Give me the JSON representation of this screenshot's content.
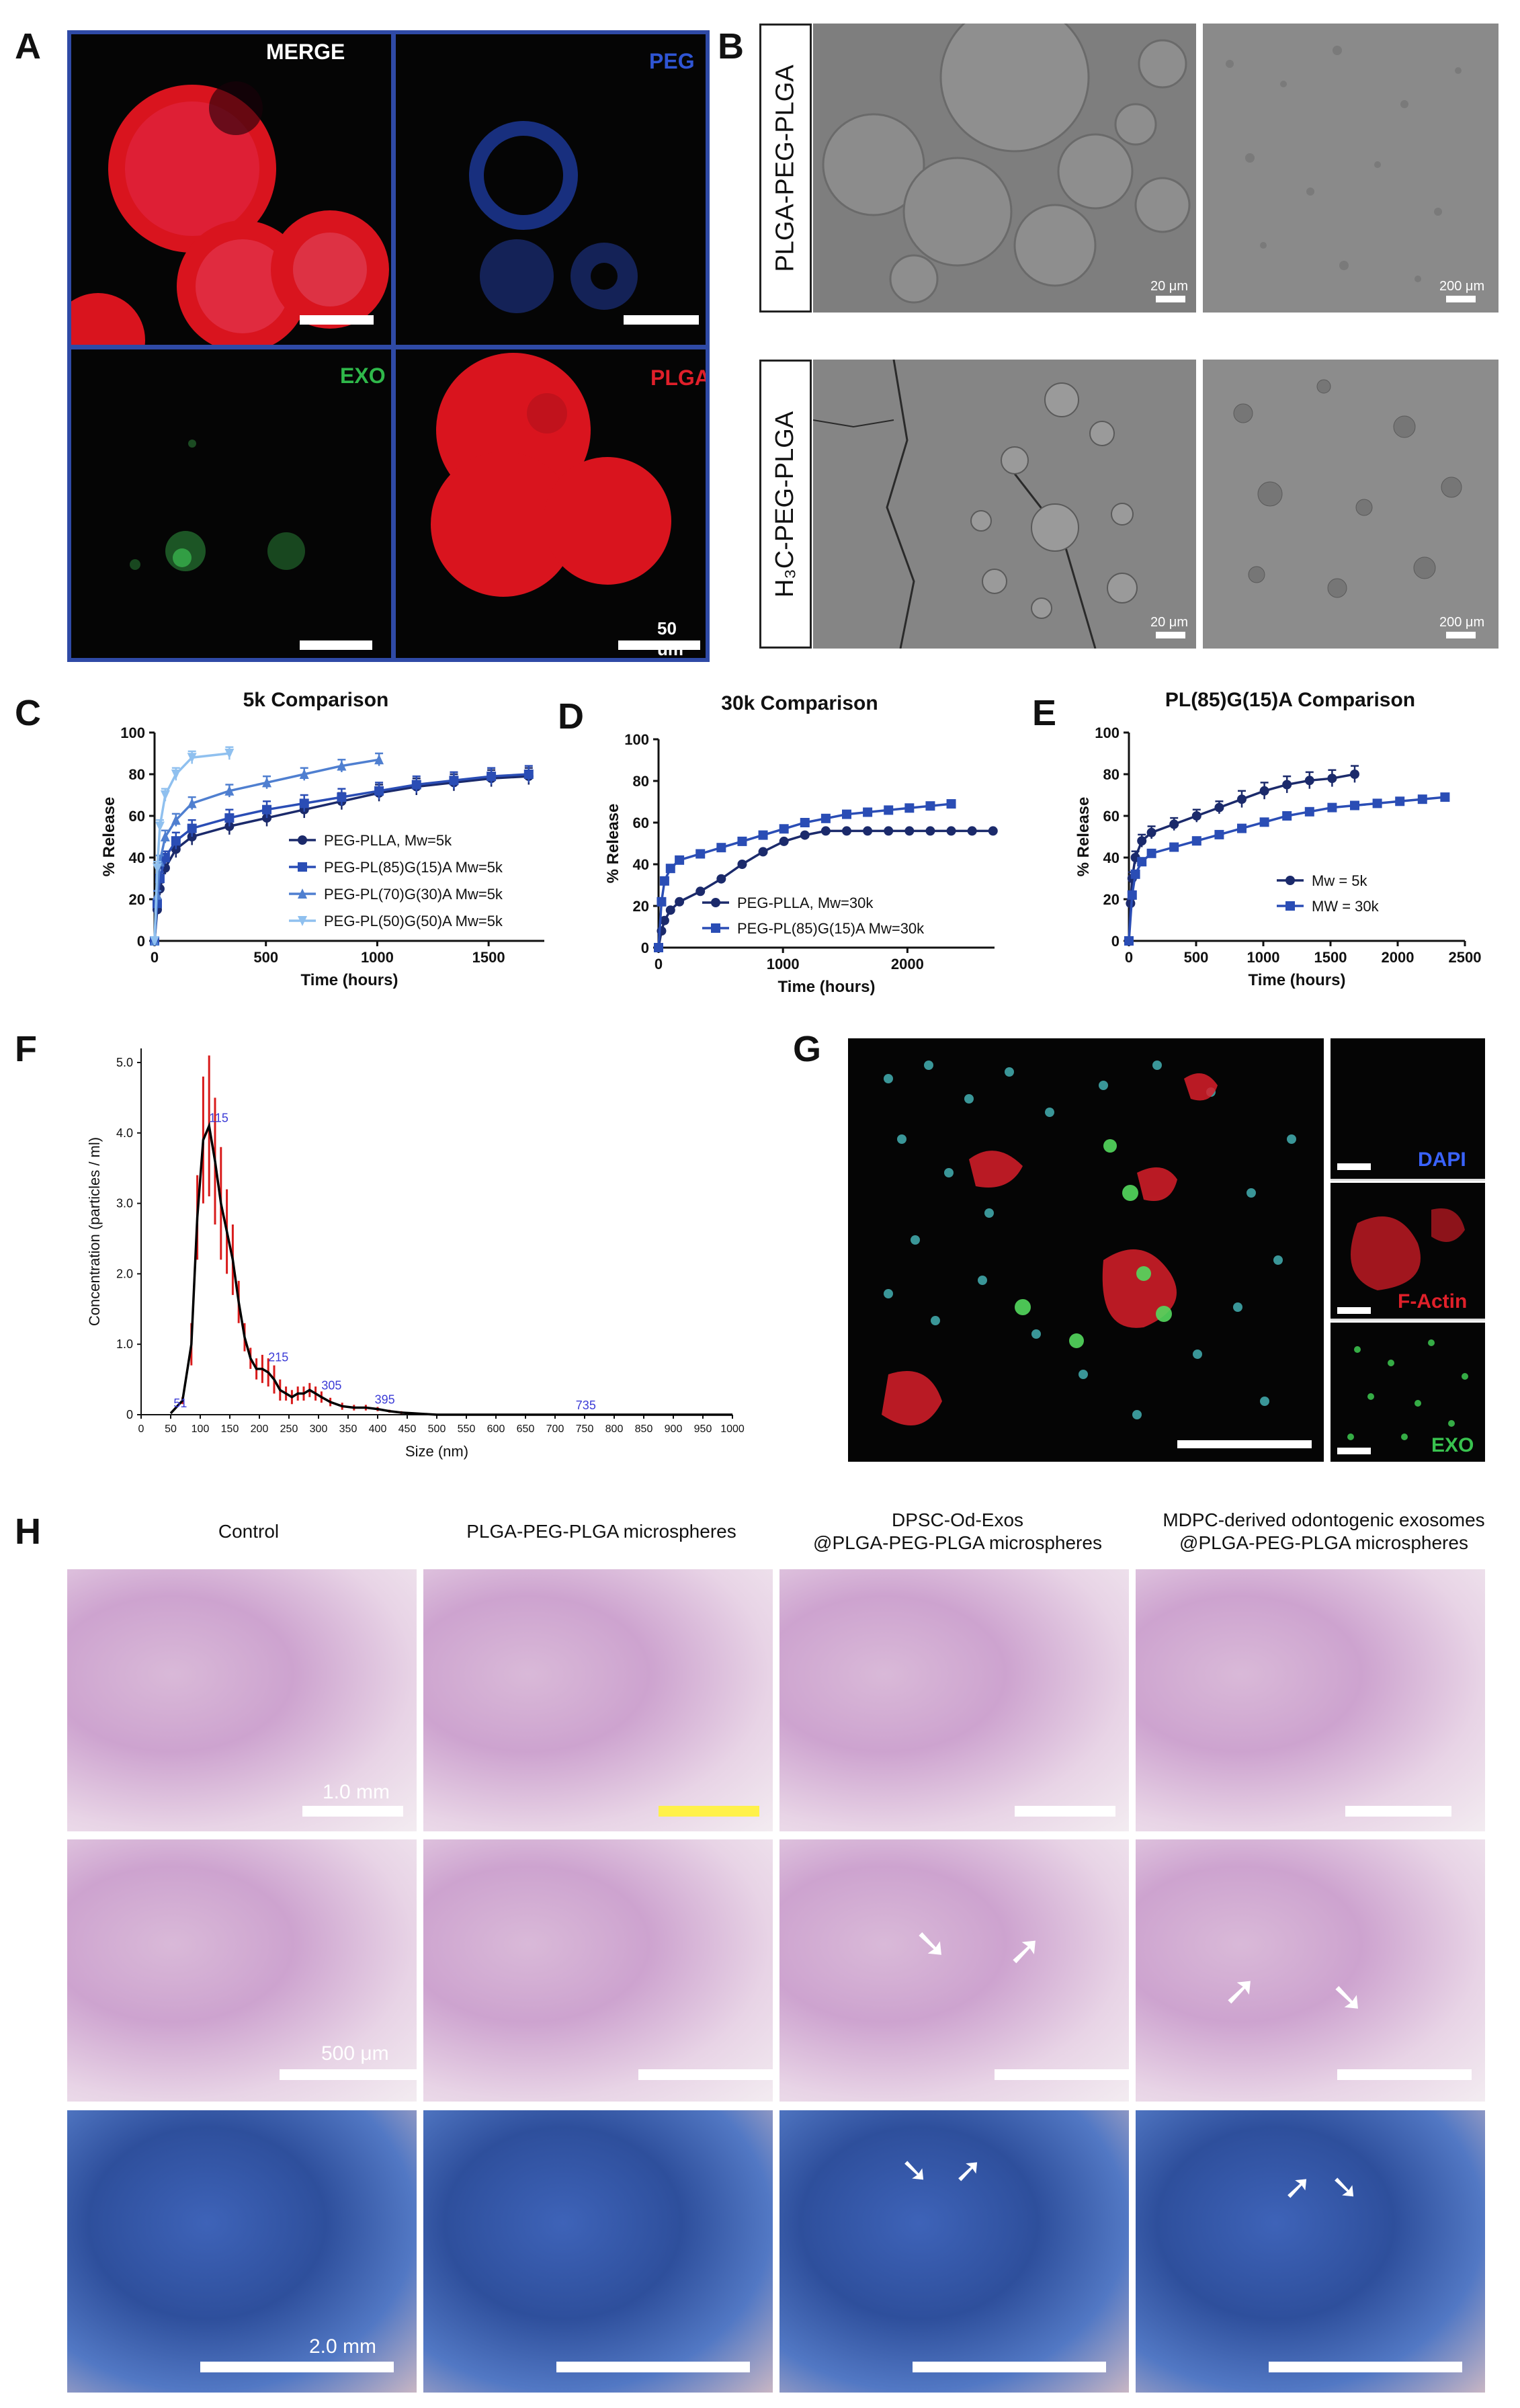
{
  "panels": {
    "A": "A",
    "B": "B",
    "C": "C",
    "D": "D",
    "E": "E",
    "F": "F",
    "G": "G",
    "H": "H"
  },
  "panel_a": {
    "labels": {
      "merge": "MERGE",
      "peg": "PEG",
      "exo": "EXO",
      "plga": "PLGA"
    },
    "scale_text": "50 um",
    "colors": {
      "merge": "#ffffff",
      "peg": "#2f55d4",
      "exo": "#2fb84a",
      "plga": "#e01f2a",
      "frame": "#2f4aa6"
    }
  },
  "panel_b": {
    "row1_label": "PLGA-PEG-PLGA",
    "row2_label": "H₃C-PEG-PLGA",
    "scale_20": "20 μm",
    "scale_200": "200 μm"
  },
  "panel_g": {
    "labels": {
      "dapi": "DAPI",
      "factin": "F-Actin",
      "exo": "EXO"
    },
    "colors": {
      "dapi": "#3a63ff",
      "factin": "#e0202a",
      "exo": "#39c24f"
    }
  },
  "panel_h": {
    "col_titles": [
      "Control",
      "PLGA-PEG-PLGA microspheres",
      "DPSC-Od-Exos\n@PLGA-PEG-PLGA microspheres",
      "MDPC-derived odontogenic exosomes\n@PLGA-PEG-PLGA microspheres"
    ],
    "row_scales": [
      "1.0 mm",
      "500 μm",
      "2.0 mm"
    ]
  },
  "chart_data": [
    {
      "id": "C",
      "type": "line",
      "title": "5k Comparison",
      "xlabel": "Time (hours)",
      "ylabel": "% Release",
      "xlim": [
        0,
        1750
      ],
      "ylim": [
        0,
        100
      ],
      "xticks": [
        0,
        500,
        1000,
        1500
      ],
      "yticks": [
        0,
        20,
        40,
        60,
        80,
        100
      ],
      "legend_position": "lower-right",
      "series": [
        {
          "name": "PEG-PLLA, Mw=5k",
          "color": "#1b2a6b",
          "marker": "circle",
          "x": [
            0,
            12,
            24,
            48,
            96,
            168,
            336,
            504,
            672,
            840,
            1008,
            1176,
            1344,
            1512,
            1680
          ],
          "y": [
            0,
            15,
            25,
            35,
            44,
            50,
            55,
            59,
            63,
            67,
            71,
            74,
            76,
            78,
            79
          ],
          "err": [
            0,
            2,
            3,
            3,
            4,
            4,
            4,
            4,
            4,
            4,
            4,
            4,
            4,
            4,
            4
          ]
        },
        {
          "name": "PEG-PL(85)G(15)A Mw=5k",
          "color": "#2a4db5",
          "marker": "square",
          "x": [
            0,
            12,
            24,
            48,
            96,
            168,
            336,
            504,
            672,
            840,
            1008,
            1176,
            1344,
            1512,
            1680
          ],
          "y": [
            0,
            18,
            30,
            40,
            48,
            54,
            59,
            63,
            66,
            69,
            72,
            75,
            77,
            79,
            80
          ],
          "err": [
            0,
            2,
            3,
            3,
            4,
            4,
            4,
            4,
            4,
            4,
            4,
            4,
            4,
            4,
            4
          ]
        },
        {
          "name": "PEG-PL(70)G(30)A Mw=5k",
          "color": "#4f7fd0",
          "marker": "triangle-up",
          "x": [
            0,
            12,
            24,
            48,
            96,
            168,
            336,
            504,
            672,
            840,
            1008
          ],
          "y": [
            0,
            22,
            38,
            50,
            58,
            66,
            72,
            76,
            80,
            84,
            87
          ],
          "err": [
            0,
            2,
            3,
            3,
            3,
            3,
            3,
            3,
            3,
            3,
            3
          ]
        },
        {
          "name": "PEG-PL(50)G(50)A Mw=5k",
          "color": "#8fc0ef",
          "marker": "triangle-down",
          "x": [
            0,
            12,
            24,
            48,
            96,
            168,
            336
          ],
          "y": [
            0,
            35,
            55,
            70,
            80,
            88,
            90
          ],
          "err": [
            0,
            3,
            3,
            3,
            3,
            3,
            3
          ]
        }
      ]
    },
    {
      "id": "D",
      "type": "line",
      "title": "30k Comparison",
      "xlabel": "Time (hours)",
      "ylabel": "% Release",
      "xlim": [
        0,
        2700
      ],
      "ylim": [
        0,
        100
      ],
      "xticks": [
        0,
        1000,
        2000
      ],
      "yticks": [
        0,
        20,
        40,
        60,
        80,
        100
      ],
      "legend_position": "lower-right",
      "series": [
        {
          "name": "PEG-PLLA, Mw=30k",
          "color": "#1b2a6b",
          "marker": "circle",
          "x": [
            0,
            24,
            48,
            96,
            168,
            336,
            504,
            672,
            840,
            1008,
            1176,
            1344,
            1512,
            1680,
            1848,
            2016,
            2184,
            2352,
            2520,
            2688
          ],
          "y": [
            0,
            8,
            13,
            18,
            22,
            27,
            33,
            40,
            46,
            51,
            54,
            56,
            56,
            56,
            56,
            56,
            56,
            56,
            56,
            56
          ],
          "err": []
        },
        {
          "name": "PEG-PL(85)G(15)A Mw=30k",
          "color": "#2a4db5",
          "marker": "square",
          "x": [
            0,
            24,
            48,
            96,
            168,
            336,
            504,
            672,
            840,
            1008,
            1176,
            1344,
            1512,
            1680,
            1848,
            2016,
            2184,
            2352
          ],
          "y": [
            0,
            22,
            32,
            38,
            42,
            45,
            48,
            51,
            54,
            57,
            60,
            62,
            64,
            65,
            66,
            67,
            68,
            69
          ],
          "err": []
        }
      ]
    },
    {
      "id": "E",
      "type": "line",
      "title": "PL(85)G(15)A Comparison",
      "xlabel": "Time (hours)",
      "ylabel": "% Release",
      "xlim": [
        0,
        2500
      ],
      "ylim": [
        0,
        100
      ],
      "xticks": [
        0,
        500,
        1000,
        1500,
        2000,
        2500
      ],
      "yticks": [
        0,
        20,
        40,
        60,
        80,
        100
      ],
      "legend_position": "lower-right",
      "series": [
        {
          "name": "Mw = 5k",
          "color": "#1b2a6b",
          "marker": "circle",
          "x": [
            0,
            12,
            24,
            48,
            96,
            168,
            336,
            504,
            672,
            840,
            1008,
            1176,
            1344,
            1512,
            1680
          ],
          "y": [
            0,
            18,
            30,
            40,
            48,
            52,
            56,
            60,
            64,
            68,
            72,
            75,
            77,
            78,
            80
          ],
          "err": [
            0,
            2,
            3,
            3,
            3,
            3,
            3,
            3,
            3,
            4,
            4,
            4,
            4,
            4,
            4
          ]
        },
        {
          "name": "MW = 30k",
          "color": "#2a4db5",
          "marker": "square",
          "x": [
            0,
            24,
            48,
            96,
            168,
            336,
            504,
            672,
            840,
            1008,
            1176,
            1344,
            1512,
            1680,
            1848,
            2016,
            2184,
            2352
          ],
          "y": [
            0,
            22,
            32,
            38,
            42,
            45,
            48,
            51,
            54,
            57,
            60,
            62,
            64,
            65,
            66,
            67,
            68,
            69
          ],
          "err": []
        }
      ]
    },
    {
      "id": "F",
      "type": "line",
      "title": "",
      "xlabel": "Size (nm)",
      "ylabel": "Concentration (particles / ml)",
      "xlim": [
        0,
        1000
      ],
      "ylim": [
        0,
        5.2
      ],
      "xticks": [
        0,
        50,
        100,
        150,
        200,
        250,
        300,
        350,
        400,
        450,
        500,
        550,
        600,
        650,
        700,
        750,
        800,
        850,
        900,
        950,
        1000
      ],
      "yticks": [
        0,
        1.0,
        2.0,
        3.0,
        4.0,
        5.0
      ],
      "ytick_labels": [
        "0",
        "1.0",
        "2.0",
        "3.0",
        "4.0",
        "5.0"
      ],
      "series": [
        {
          "name": "",
          "color": "#000000",
          "x": [
            50,
            70,
            85,
            95,
            105,
            115,
            125,
            135,
            145,
            155,
            165,
            175,
            185,
            195,
            205,
            215,
            225,
            235,
            245,
            255,
            265,
            275,
            285,
            295,
            305,
            320,
            340,
            360,
            380,
            400,
            420,
            440,
            460,
            480,
            500,
            550,
            600,
            700,
            800,
            1000
          ],
          "y": [
            0.02,
            0.2,
            1.0,
            2.8,
            3.9,
            4.1,
            3.6,
            3.0,
            2.6,
            2.2,
            1.6,
            1.1,
            0.8,
            0.65,
            0.65,
            0.6,
            0.5,
            0.35,
            0.3,
            0.25,
            0.3,
            0.3,
            0.35,
            0.3,
            0.25,
            0.18,
            0.12,
            0.1,
            0.1,
            0.08,
            0.05,
            0.03,
            0.02,
            0.01,
            0.0,
            0.0,
            0.0,
            0.0,
            0.0,
            0.0
          ],
          "err": [
            0,
            0.05,
            0.3,
            0.6,
            0.9,
            1.0,
            0.9,
            0.8,
            0.6,
            0.5,
            0.3,
            0.2,
            0.15,
            0.15,
            0.2,
            0.2,
            0.2,
            0.15,
            0.1,
            0.1,
            0.1,
            0.1,
            0.1,
            0.1,
            0.08,
            0.06,
            0.05,
            0.04,
            0.04,
            0.03,
            0.02,
            0.02,
            0.01,
            0.01,
            0,
            0,
            0,
            0,
            0,
            0
          ]
        }
      ],
      "error_color": "#d81b1b",
      "annotations": [
        {
          "x": 55,
          "y": 0.05,
          "text": "51"
        },
        {
          "x": 115,
          "y": 4.1,
          "text": "115"
        },
        {
          "x": 215,
          "y": 0.7,
          "text": "215"
        },
        {
          "x": 305,
          "y": 0.3,
          "text": "305"
        },
        {
          "x": 395,
          "y": 0.1,
          "text": "395"
        },
        {
          "x": 735,
          "y": 0.02,
          "text": "735"
        }
      ],
      "annotation_color": "#3b3bd6"
    }
  ]
}
